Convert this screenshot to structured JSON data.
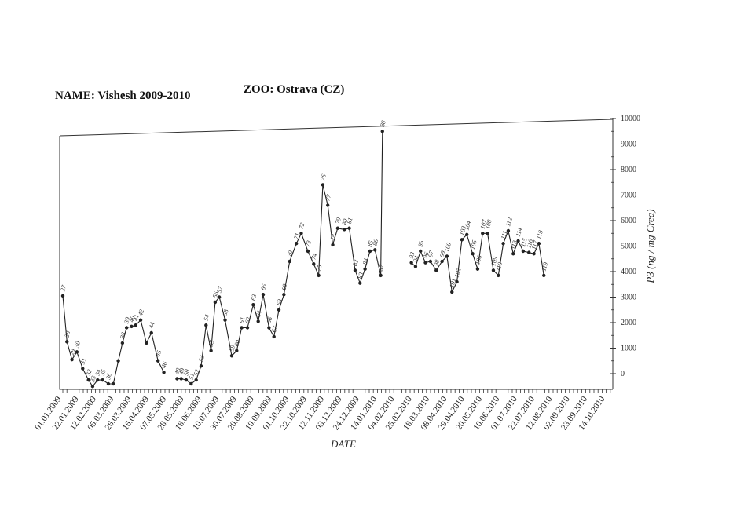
{
  "header": {
    "name_label": "NAME:",
    "name_value": "Vishesh 2009-2010",
    "zoo_label": "ZOO:",
    "zoo_value": "Ostrava (CZ)"
  },
  "chart_data": {
    "type": "line",
    "xlabel": "DATE",
    "ylabel": "P3 (ng / mg Crea)",
    "ylim": [
      0,
      10000
    ],
    "yticks": [
      0,
      1000,
      2000,
      3000,
      4000,
      5000,
      6000,
      7000,
      8000,
      9000,
      10000
    ],
    "y_axis_side": "right",
    "grid": false,
    "x_tick_labels": [
      "01.01.2009",
      "22.01.2009",
      "12.02.2009",
      "05.03.2009",
      "26.03.2009",
      "16.04.2009",
      "07.05.2009",
      "28.05.2009",
      "18.06.2009",
      "10.07.2009",
      "30.07.2009",
      "20.08.2009",
      "10.09.2009",
      "01.10.2009",
      "22.10.2009",
      "12.11.2009",
      "03.12.2009",
      "24.12.2009",
      "14.01.2010",
      "04.02.2010",
      "25.02.2010",
      "18.03.2010",
      "08.04.2010",
      "29.04.2010",
      "20.05.2010",
      "10.06.2010",
      "01.07.2010",
      "22.07.2010",
      "12.08.2010",
      "02.09.2010",
      "23.09.2010",
      "14.10.2010"
    ],
    "series": [
      {
        "segments": [
          [
            {
              "x": "2009-01-01",
              "y": 3050,
              "label": "27"
            },
            {
              "x": "2009-01-06",
              "y": 1250,
              "label": "28"
            },
            {
              "x": "2009-01-12",
              "y": 550,
              "label": "29"
            },
            {
              "x": "2009-01-18",
              "y": 850,
              "label": "30"
            },
            {
              "x": "2009-01-25",
              "y": 200,
              "label": "31"
            },
            {
              "x": "2009-02-01",
              "y": -250,
              "label": "32"
            },
            {
              "x": "2009-02-06",
              "y": -500,
              "label": "33"
            },
            {
              "x": "2009-02-12",
              "y": -250,
              "label": "34"
            },
            {
              "x": "2009-02-18",
              "y": -250,
              "label": "35"
            },
            {
              "x": "2009-02-25",
              "y": -400,
              "label": "36"
            },
            {
              "x": "2009-03-03",
              "y": -400,
              "label": ""
            },
            {
              "x": "2009-03-09",
              "y": 500,
              "label": ""
            },
            {
              "x": "2009-03-14",
              "y": 1200,
              "label": "38"
            },
            {
              "x": "2009-03-19",
              "y": 1800,
              "label": "39"
            },
            {
              "x": "2009-03-25",
              "y": 1850,
              "label": "40"
            },
            {
              "x": "2009-03-30",
              "y": 1900,
              "label": "41"
            },
            {
              "x": "2009-04-05",
              "y": 2100,
              "label": "42"
            },
            {
              "x": "2009-04-12",
              "y": 1200,
              "label": ""
            },
            {
              "x": "2009-04-18",
              "y": 1600,
              "label": "44"
            },
            {
              "x": "2009-04-26",
              "y": 500,
              "label": "45"
            },
            {
              "x": "2009-05-03",
              "y": 50,
              "label": "46"
            }
          ],
          [
            {
              "x": "2009-05-19",
              "y": -200,
              "label": "48"
            },
            {
              "x": "2009-05-24",
              "y": -200,
              "label": "49"
            },
            {
              "x": "2009-05-30",
              "y": -250,
              "label": "50"
            },
            {
              "x": "2009-06-05",
              "y": -400,
              "label": "51"
            },
            {
              "x": "2009-06-11",
              "y": -250,
              "label": "52"
            },
            {
              "x": "2009-06-17",
              "y": 300,
              "label": "53"
            },
            {
              "x": "2009-06-23",
              "y": 1900,
              "label": "54"
            },
            {
              "x": "2009-06-29",
              "y": 900,
              "label": "55"
            },
            {
              "x": "2009-07-04",
              "y": 2800,
              "label": "56"
            },
            {
              "x": "2009-07-09",
              "y": 3000,
              "label": "57"
            },
            {
              "x": "2009-07-16",
              "y": 2100,
              "label": "58"
            },
            {
              "x": "2009-07-24",
              "y": 700,
              "label": "59"
            },
            {
              "x": "2009-07-30",
              "y": 900,
              "label": "60"
            },
            {
              "x": "2009-08-05",
              "y": 1800,
              "label": "61"
            },
            {
              "x": "2009-08-12",
              "y": 1800,
              "label": "62"
            },
            {
              "x": "2009-08-19",
              "y": 2700,
              "label": "63"
            },
            {
              "x": "2009-08-25",
              "y": 2050,
              "label": "64"
            },
            {
              "x": "2009-08-31",
              "y": 3100,
              "label": "65"
            },
            {
              "x": "2009-09-07",
              "y": 1800,
              "label": "66"
            },
            {
              "x": "2009-09-13",
              "y": 1450,
              "label": "67"
            },
            {
              "x": "2009-09-19",
              "y": 2500,
              "label": "68"
            },
            {
              "x": "2009-09-25",
              "y": 3100,
              "label": "69"
            },
            {
              "x": "2009-10-02",
              "y": 4400,
              "label": "70"
            },
            {
              "x": "2009-10-10",
              "y": 5100,
              "label": "71"
            },
            {
              "x": "2009-10-16",
              "y": 5500,
              "label": "72"
            },
            {
              "x": "2009-10-24",
              "y": 4800,
              "label": "73"
            },
            {
              "x": "2009-10-31",
              "y": 4300,
              "label": "74"
            },
            {
              "x": "2009-11-06",
              "y": 3850,
              "label": "75"
            },
            {
              "x": "2009-11-11",
              "y": 7400,
              "label": "76"
            },
            {
              "x": "2009-11-17",
              "y": 6600,
              "label": "77"
            },
            {
              "x": "2009-11-23",
              "y": 5050,
              "label": "78"
            },
            {
              "x": "2009-11-29",
              "y": 5700,
              "label": "79"
            },
            {
              "x": "2009-12-07",
              "y": 5650,
              "label": "80"
            },
            {
              "x": "2009-12-13",
              "y": 5700,
              "label": "81"
            },
            {
              "x": "2009-12-20",
              "y": 4050,
              "label": "82"
            },
            {
              "x": "2009-12-26",
              "y": 3550,
              "label": "83"
            },
            {
              "x": "2010-01-01",
              "y": 4100,
              "label": "84"
            },
            {
              "x": "2010-01-07",
              "y": 4800,
              "label": "85"
            },
            {
              "x": "2010-01-13",
              "y": 4850,
              "label": "86"
            },
            {
              "x": "2010-01-20",
              "y": 3850,
              "label": "87"
            },
            {
              "x": "2010-01-22",
              "y": 9500,
              "label": "88"
            }
          ],
          [
            {
              "x": "2010-02-26",
              "y": 4350,
              "label": "93"
            },
            {
              "x": "2010-03-03",
              "y": 4200,
              "label": "94"
            },
            {
              "x": "2010-03-09",
              "y": 4800,
              "label": "95"
            },
            {
              "x": "2010-03-15",
              "y": 4350,
              "label": "96"
            },
            {
              "x": "2010-03-21",
              "y": 4400,
              "label": "97"
            },
            {
              "x": "2010-03-28",
              "y": 4050,
              "label": "98"
            },
            {
              "x": "2010-04-04",
              "y": 4400,
              "label": "99"
            },
            {
              "x": "2010-04-10",
              "y": 4600,
              "label": "100"
            },
            {
              "x": "2010-04-16",
              "y": 3200,
              "label": "101"
            },
            {
              "x": "2010-04-22",
              "y": 3600,
              "label": "102"
            },
            {
              "x": "2010-04-28",
              "y": 5250,
              "label": "103"
            },
            {
              "x": "2010-05-04",
              "y": 5450,
              "label": "104"
            },
            {
              "x": "2010-05-11",
              "y": 4700,
              "label": "105"
            },
            {
              "x": "2010-05-17",
              "y": 4100,
              "label": "106"
            },
            {
              "x": "2010-05-23",
              "y": 5500,
              "label": "107"
            },
            {
              "x": "2010-05-29",
              "y": 5500,
              "label": "108"
            },
            {
              "x": "2010-06-05",
              "y": 4050,
              "label": "109"
            },
            {
              "x": "2010-06-11",
              "y": 3850,
              "label": "110"
            },
            {
              "x": "2010-06-17",
              "y": 5100,
              "label": "111"
            },
            {
              "x": "2010-06-23",
              "y": 5600,
              "label": "112"
            },
            {
              "x": "2010-06-29",
              "y": 4700,
              "label": "113"
            },
            {
              "x": "2010-07-05",
              "y": 5200,
              "label": "114"
            },
            {
              "x": "2010-07-11",
              "y": 4800,
              "label": "115"
            },
            {
              "x": "2010-07-18",
              "y": 4750,
              "label": "116"
            },
            {
              "x": "2010-07-24",
              "y": 4700,
              "label": "117"
            },
            {
              "x": "2010-07-30",
              "y": 5100,
              "label": "118"
            },
            {
              "x": "2010-08-05",
              "y": 3850,
              "label": "119"
            }
          ]
        ]
      }
    ]
  }
}
